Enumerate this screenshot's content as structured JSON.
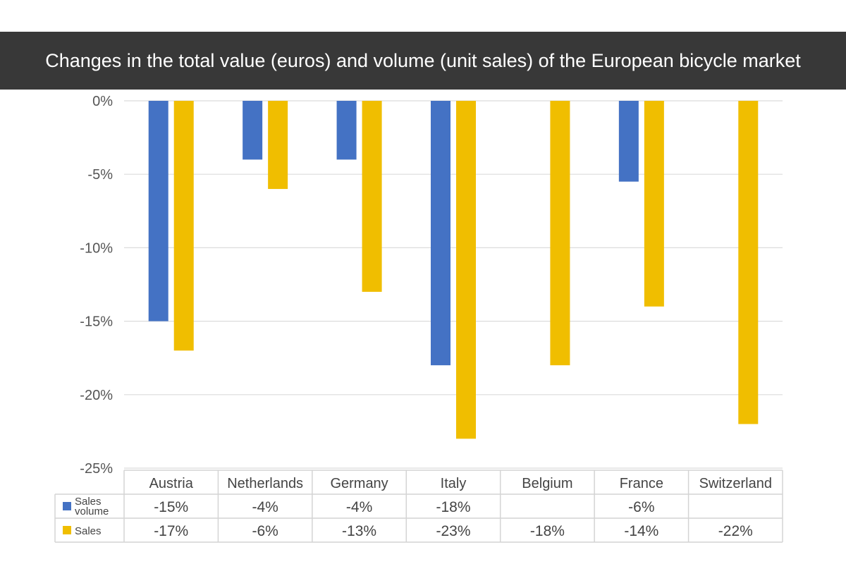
{
  "title": "Changes in the total value (euros) and volume (unit sales) of the European bicycle market",
  "chart_data": {
    "type": "bar",
    "title": "Changes in the total value (euros) and volume (unit sales) of the European bicycle market",
    "categories": [
      "Austria",
      "Netherlands",
      "Germany",
      "Italy",
      "Belgium",
      "France",
      "Switzerland"
    ],
    "series": [
      {
        "name": "Sales volume",
        "color": "#4472C4",
        "values": [
          -15,
          -4,
          -4,
          -18,
          null,
          -5.5,
          null
        ],
        "labels": [
          "-15%",
          "-4%",
          "-4%",
          "-18%",
          "",
          "-6%",
          ""
        ]
      },
      {
        "name": "Sales",
        "color": "#F0BE00",
        "values": [
          -17,
          -6,
          -13,
          -23,
          -18,
          -14,
          -22
        ],
        "labels": [
          "-17%",
          "-6%",
          "-13%",
          "-23%",
          "-18%",
          "-14%",
          "-22%"
        ]
      }
    ],
    "y_ticks": [
      0,
      -5,
      -10,
      -15,
      -20,
      -25
    ],
    "y_tick_labels": [
      "0%",
      "-5%",
      "-10%",
      "-15%",
      "-20%",
      "-25%"
    ],
    "ylim": [
      -25,
      0
    ],
    "grid": true,
    "legend_position": "data-table-bottom",
    "xlabel": "",
    "ylabel": ""
  }
}
